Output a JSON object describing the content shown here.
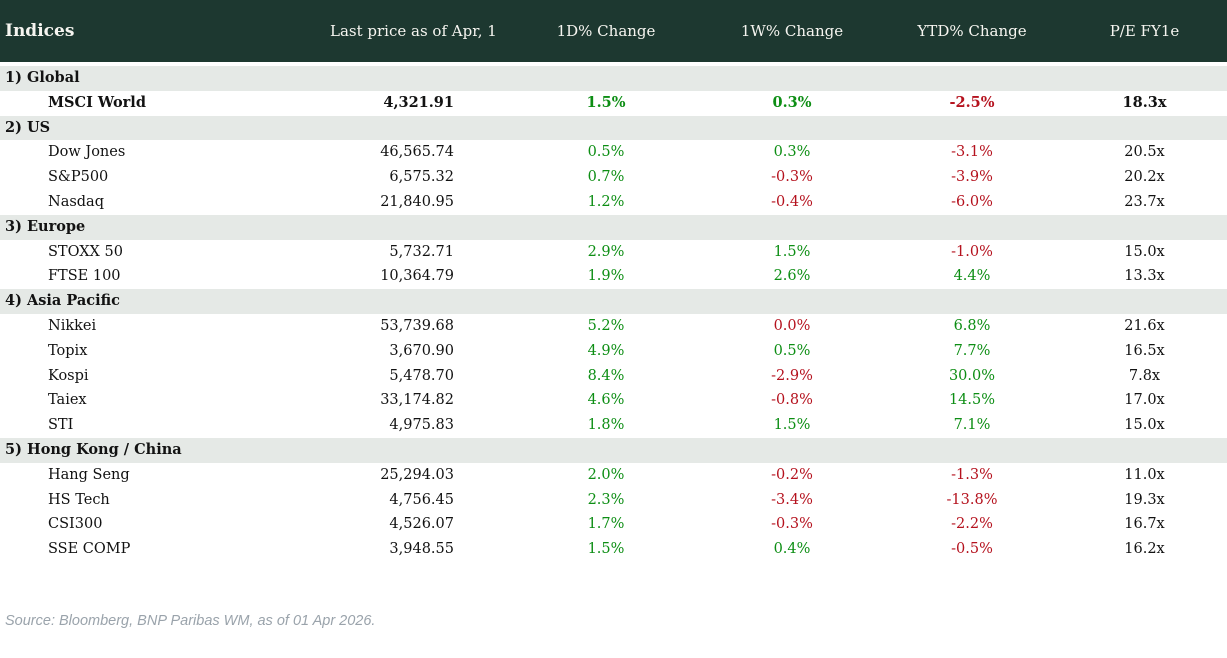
{
  "colors": {
    "header_bg": "#1d3830",
    "section_bg": "#e5e9e6",
    "green": "#0d8e14",
    "red": "#b5121e"
  },
  "chart_data": {
    "type": "table",
    "title": "Indices",
    "columns": [
      "Last price as of Apr, 1",
      "1D% Change",
      "1W% Change",
      "YTD% Change",
      "P/E FY1e"
    ],
    "sections": [
      {
        "label": "1) Global",
        "rows": [
          {
            "name": "MSCI World",
            "price": "4,321.91",
            "d1": {
              "v": "1.5%",
              "c": "up"
            },
            "w1": {
              "v": "0.3%",
              "c": "up"
            },
            "ytd": {
              "v": "-2.5%",
              "c": "down"
            },
            "pe": "18.3x",
            "bold": true
          }
        ]
      },
      {
        "label": "2) US",
        "rows": [
          {
            "name": "Dow Jones",
            "price": "46,565.74",
            "d1": {
              "v": "0.5%",
              "c": "up"
            },
            "w1": {
              "v": "0.3%",
              "c": "up"
            },
            "ytd": {
              "v": "-3.1%",
              "c": "down"
            },
            "pe": "20.5x",
            "bold": false
          },
          {
            "name": "S&P500",
            "price": "6,575.32",
            "d1": {
              "v": "0.7%",
              "c": "up"
            },
            "w1": {
              "v": "-0.3%",
              "c": "down"
            },
            "ytd": {
              "v": "-3.9%",
              "c": "down"
            },
            "pe": "20.2x",
            "bold": false
          },
          {
            "name": "Nasdaq",
            "price": "21,840.95",
            "d1": {
              "v": "1.2%",
              "c": "up"
            },
            "w1": {
              "v": "-0.4%",
              "c": "down"
            },
            "ytd": {
              "v": "-6.0%",
              "c": "down"
            },
            "pe": "23.7x",
            "bold": false
          }
        ]
      },
      {
        "label": "3) Europe",
        "rows": [
          {
            "name": "STOXX 50",
            "price": "5,732.71",
            "d1": {
              "v": "2.9%",
              "c": "up"
            },
            "w1": {
              "v": "1.5%",
              "c": "up"
            },
            "ytd": {
              "v": "-1.0%",
              "c": "down"
            },
            "pe": "15.0x",
            "bold": false
          },
          {
            "name": "FTSE 100",
            "price": "10,364.79",
            "d1": {
              "v": "1.9%",
              "c": "up"
            },
            "w1": {
              "v": "2.6%",
              "c": "up"
            },
            "ytd": {
              "v": "4.4%",
              "c": "up"
            },
            "pe": "13.3x",
            "bold": false
          }
        ]
      },
      {
        "label": "4) Asia Pacific",
        "rows": [
          {
            "name": "Nikkei",
            "price": "53,739.68",
            "d1": {
              "v": "5.2%",
              "c": "up"
            },
            "w1": {
              "v": "0.0%",
              "c": "down"
            },
            "ytd": {
              "v": "6.8%",
              "c": "up"
            },
            "pe": "21.6x",
            "bold": false
          },
          {
            "name": "Topix",
            "price": "3,670.90",
            "d1": {
              "v": "4.9%",
              "c": "up"
            },
            "w1": {
              "v": "0.5%",
              "c": "up"
            },
            "ytd": {
              "v": "7.7%",
              "c": "up"
            },
            "pe": "16.5x",
            "bold": false
          },
          {
            "name": "Kospi",
            "price": "5,478.70",
            "d1": {
              "v": "8.4%",
              "c": "up"
            },
            "w1": {
              "v": "-2.9%",
              "c": "down"
            },
            "ytd": {
              "v": "30.0%",
              "c": "up"
            },
            "pe": "7.8x",
            "bold": false
          },
          {
            "name": "Taiex",
            "price": "33,174.82",
            "d1": {
              "v": "4.6%",
              "c": "up"
            },
            "w1": {
              "v": "-0.8%",
              "c": "down"
            },
            "ytd": {
              "v": "14.5%",
              "c": "up"
            },
            "pe": "17.0x",
            "bold": false
          },
          {
            "name": "STI",
            "price": "4,975.83",
            "d1": {
              "v": "1.8%",
              "c": "up"
            },
            "w1": {
              "v": "1.5%",
              "c": "up"
            },
            "ytd": {
              "v": "7.1%",
              "c": "up"
            },
            "pe": "15.0x",
            "bold": false
          }
        ]
      },
      {
        "label": "5) Hong Kong / China",
        "rows": [
          {
            "name": "Hang Seng",
            "price": "25,294.03",
            "d1": {
              "v": "2.0%",
              "c": "up"
            },
            "w1": {
              "v": "-0.2%",
              "c": "down"
            },
            "ytd": {
              "v": "-1.3%",
              "c": "down"
            },
            "pe": "11.0x",
            "bold": false
          },
          {
            "name": "HS Tech",
            "price": "4,756.45",
            "d1": {
              "v": "2.3%",
              "c": "up"
            },
            "w1": {
              "v": "-3.4%",
              "c": "down"
            },
            "ytd": {
              "v": "-13.8%",
              "c": "down"
            },
            "pe": "19.3x",
            "bold": false
          },
          {
            "name": "CSI300",
            "price": "4,526.07",
            "d1": {
              "v": "1.7%",
              "c": "up"
            },
            "w1": {
              "v": "-0.3%",
              "c": "down"
            },
            "ytd": {
              "v": "-2.2%",
              "c": "down"
            },
            "pe": "16.7x",
            "bold": false
          },
          {
            "name": "SSE COMP",
            "price": "3,948.55",
            "d1": {
              "v": "1.5%",
              "c": "up"
            },
            "w1": {
              "v": "0.4%",
              "c": "up"
            },
            "ytd": {
              "v": "-0.5%",
              "c": "down"
            },
            "pe": "16.2x",
            "bold": false
          }
        ]
      }
    ]
  },
  "footer": {
    "source": "Source: Bloomberg, BNP Paribas WM, as of 01 Apr 2026."
  }
}
